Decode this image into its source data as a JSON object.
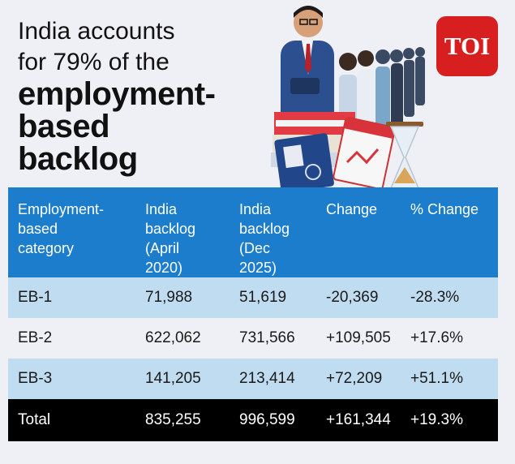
{
  "headline": {
    "line1": "India accounts",
    "line2": "for 79% of the",
    "line3": "employment-",
    "line4": "based",
    "line5": "backlog"
  },
  "logo": {
    "text": "TOI",
    "color": "#d81f1f"
  },
  "table": {
    "headers": [
      [
        "Employment-",
        "based",
        "category"
      ],
      [
        "India",
        "backlog",
        "(April",
        "2020)"
      ],
      [
        "India",
        "backlog",
        "(Dec",
        "2025)"
      ],
      [
        "Change"
      ],
      [
        "% Change"
      ]
    ],
    "rows": [
      [
        "EB-1",
        "71,988",
        "51,619",
        "-20,369",
        "-28.3%"
      ],
      [
        "EB-2",
        "622,062",
        "731,566",
        "+109,505",
        "+17.6%"
      ],
      [
        "EB-3",
        "141,205",
        "213,414",
        "+72,209",
        "+51.1%"
      ],
      [
        "Total",
        "835,255",
        "996,599",
        "+161,344",
        "+19.3%"
      ]
    ],
    "header_color": "#1b7dcc",
    "stripe_color": "#bfdcf0",
    "total_color": "#000000"
  }
}
